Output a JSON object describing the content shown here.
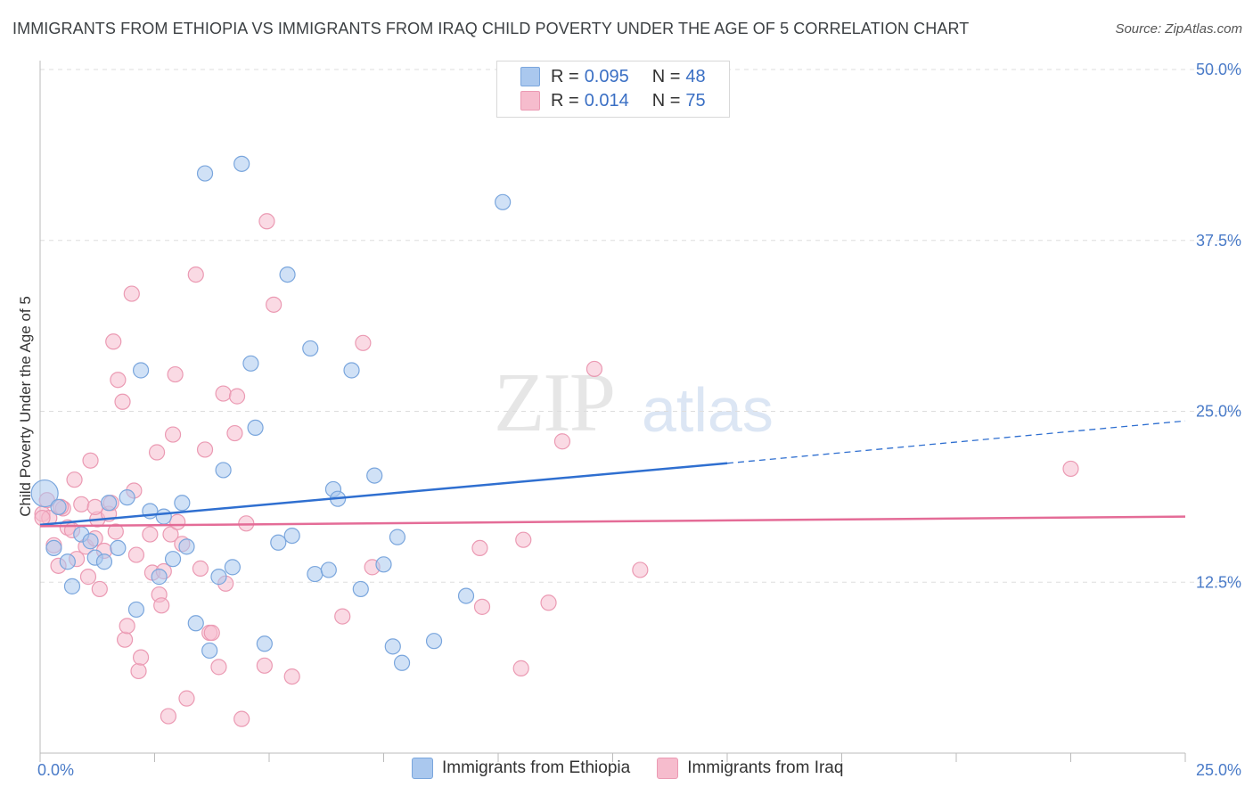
{
  "header": {
    "title": "IMMIGRANTS FROM ETHIOPIA VS IMMIGRANTS FROM IRAQ CHILD POVERTY UNDER THE AGE OF 5 CORRELATION CHART",
    "source": "Source: ZipAtlas.com"
  },
  "watermark": {
    "zip": "ZIP",
    "atlas": "atlas"
  },
  "legend": {
    "ethiopia": {
      "r_label": "R = ",
      "r_value": "0.095",
      "n_label": "N = ",
      "n_value": "48"
    },
    "iraq": {
      "r_label": "R = ",
      "r_value": "0.014",
      "n_label": "N = ",
      "n_value": "75"
    }
  },
  "colors": {
    "ethiopia_fill": "#aac8ee",
    "ethiopia_stroke": "#7aa6dd",
    "ethiopia_line": "#2f6fd0",
    "iraq_fill": "#f6bccd",
    "iraq_stroke": "#eb9ab3",
    "iraq_line": "#e46c97",
    "tick_text": "#4a7bc8",
    "grid": "#dddddd"
  },
  "chart_data": {
    "type": "scatter",
    "title": "IMMIGRANTS FROM ETHIOPIA VS IMMIGRANTS FROM IRAQ CHILD POVERTY UNDER THE AGE OF 5 CORRELATION CHART",
    "xlabel": "",
    "ylabel": "Child Poverty Under the Age of 5",
    "xlim": [
      0,
      25
    ],
    "ylim": [
      0,
      50
    ],
    "x_tick_labels": [
      "0.0%",
      "25.0%"
    ],
    "y_ticks": [
      12.5,
      25.0,
      37.5,
      50.0
    ],
    "y_tick_labels": [
      "12.5%",
      "25.0%",
      "37.5%",
      "50.0%"
    ],
    "grid": true,
    "legend_position": "top-center",
    "series": [
      {
        "name": "Immigrants from Ethiopia",
        "points": [
          [
            0.1,
            19.0
          ],
          [
            0.3,
            15.0
          ],
          [
            0.4,
            18.0
          ],
          [
            0.6,
            14.0
          ],
          [
            0.7,
            12.2
          ],
          [
            0.9,
            16.0
          ],
          [
            1.1,
            15.5
          ],
          [
            1.2,
            14.3
          ],
          [
            1.4,
            14.0
          ],
          [
            1.5,
            18.3
          ],
          [
            1.7,
            15.0
          ],
          [
            1.9,
            18.7
          ],
          [
            2.1,
            10.5
          ],
          [
            2.2,
            28.0
          ],
          [
            2.4,
            17.7
          ],
          [
            2.6,
            12.9
          ],
          [
            2.7,
            17.3
          ],
          [
            2.9,
            14.2
          ],
          [
            3.1,
            18.3
          ],
          [
            3.2,
            15.1
          ],
          [
            3.4,
            9.5
          ],
          [
            3.6,
            42.4
          ],
          [
            3.7,
            7.5
          ],
          [
            3.9,
            12.9
          ],
          [
            4.0,
            20.7
          ],
          [
            4.2,
            13.6
          ],
          [
            4.4,
            43.1
          ],
          [
            4.6,
            28.5
          ],
          [
            4.7,
            23.8
          ],
          [
            4.9,
            8.0
          ],
          [
            5.2,
            15.4
          ],
          [
            5.4,
            35.0
          ],
          [
            5.5,
            15.9
          ],
          [
            5.9,
            29.6
          ],
          [
            6.0,
            13.1
          ],
          [
            6.3,
            13.4
          ],
          [
            6.4,
            19.3
          ],
          [
            6.5,
            18.6
          ],
          [
            6.8,
            28.0
          ],
          [
            7.0,
            12.0
          ],
          [
            7.3,
            20.3
          ],
          [
            7.5,
            13.8
          ],
          [
            7.7,
            7.8
          ],
          [
            7.9,
            6.6
          ],
          [
            7.8,
            15.8
          ],
          [
            8.6,
            8.2
          ],
          [
            9.3,
            11.5
          ],
          [
            10.1,
            40.3
          ]
        ]
      },
      {
        "name": "Immigrants from Iraq",
        "points": [
          [
            0.05,
            17.5
          ],
          [
            0.15,
            18.5
          ],
          [
            0.2,
            17.2
          ],
          [
            0.3,
            15.2
          ],
          [
            0.4,
            13.7
          ],
          [
            0.5,
            17.9
          ],
          [
            0.6,
            16.5
          ],
          [
            0.7,
            16.3
          ],
          [
            0.75,
            20.0
          ],
          [
            0.8,
            14.2
          ],
          [
            0.9,
            18.2
          ],
          [
            1.0,
            15.1
          ],
          [
            1.05,
            12.9
          ],
          [
            1.1,
            21.4
          ],
          [
            1.2,
            15.7
          ],
          [
            1.25,
            17.1
          ],
          [
            1.3,
            12.0
          ],
          [
            1.4,
            14.8
          ],
          [
            1.5,
            17.5
          ],
          [
            1.55,
            18.3
          ],
          [
            1.6,
            30.1
          ],
          [
            1.65,
            16.2
          ],
          [
            1.7,
            27.3
          ],
          [
            1.8,
            25.7
          ],
          [
            1.85,
            8.3
          ],
          [
            1.9,
            9.3
          ],
          [
            2.0,
            33.6
          ],
          [
            2.05,
            19.2
          ],
          [
            2.1,
            14.5
          ],
          [
            2.15,
            6.0
          ],
          [
            2.2,
            7.0
          ],
          [
            2.4,
            16.0
          ],
          [
            2.45,
            13.2
          ],
          [
            2.55,
            22.0
          ],
          [
            2.6,
            11.6
          ],
          [
            2.65,
            10.8
          ],
          [
            2.7,
            13.3
          ],
          [
            2.8,
            2.7
          ],
          [
            2.85,
            16.0
          ],
          [
            2.9,
            23.3
          ],
          [
            2.95,
            27.7
          ],
          [
            3.0,
            16.9
          ],
          [
            3.1,
            15.3
          ],
          [
            3.2,
            4.0
          ],
          [
            3.4,
            35.0
          ],
          [
            3.5,
            13.5
          ],
          [
            3.6,
            22.2
          ],
          [
            3.7,
            8.8
          ],
          [
            3.75,
            8.8
          ],
          [
            3.9,
            6.3
          ],
          [
            4.0,
            26.3
          ],
          [
            4.05,
            12.4
          ],
          [
            4.25,
            23.4
          ],
          [
            4.3,
            26.1
          ],
          [
            4.4,
            2.5
          ],
          [
            4.5,
            16.8
          ],
          [
            4.9,
            6.4
          ],
          [
            4.95,
            38.9
          ],
          [
            5.1,
            32.8
          ],
          [
            5.5,
            5.6
          ],
          [
            6.6,
            10.0
          ],
          [
            7.05,
            30.0
          ],
          [
            7.25,
            13.6
          ],
          [
            9.6,
            15.0
          ],
          [
            9.65,
            10.7
          ],
          [
            10.5,
            6.2
          ],
          [
            10.55,
            15.6
          ],
          [
            11.1,
            11.0
          ],
          [
            11.4,
            22.8
          ],
          [
            12.1,
            28.1
          ],
          [
            13.1,
            13.4
          ],
          [
            22.5,
            20.8
          ],
          [
            0.05,
            17.2
          ],
          [
            0.45,
            18.0
          ],
          [
            1.2,
            18.0
          ]
        ]
      }
    ],
    "trend_lines": [
      {
        "name": "Immigrants from Ethiopia",
        "x0": 0.0,
        "y0": 16.7,
        "x1": 15.0,
        "y1": 21.2,
        "dashed_to_x": 25.0,
        "dashed_to_y": 24.3
      },
      {
        "name": "Immigrants from Iraq",
        "x0": 0.0,
        "y0": 16.6,
        "x1": 25.0,
        "y1": 17.3
      }
    ]
  }
}
